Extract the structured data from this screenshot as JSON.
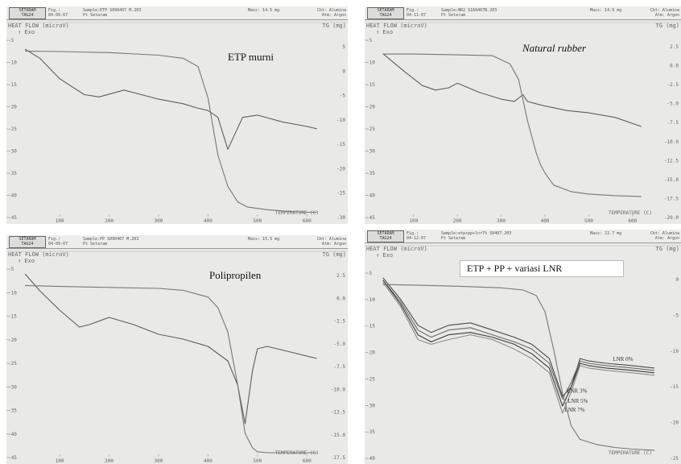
{
  "colors": {
    "background": "#e9e9e7",
    "curve": "#5e5e5e",
    "grid": "#c9c9c9",
    "text": "#666666"
  },
  "panels": [
    {
      "id": "a",
      "header": {
        "logo_line1": "SETARAM",
        "logo_line2": "TAG24",
        "fig": "Fig.:",
        "date": "04-09-07",
        "sample": "Sample:ETP  S090407 M.203",
        "operator": "Pt Setaram",
        "mass": "Mass:    14.5 mg",
        "crucible": "Cbt: Alumina",
        "atm": "Atm: Argon"
      },
      "left_axis_label": "HEAT FLOW (microV)",
      "exo_label": "Exo",
      "right_axis_label": "TG (mg)",
      "left_ticks": [
        "-5",
        "-10",
        "-15",
        "-20",
        "-25",
        "-30",
        "-35",
        "-40",
        "-45"
      ],
      "right_ticks": [
        "5",
        "0",
        "-5",
        "-10",
        "-15",
        "-20",
        "-25",
        "-30"
      ],
      "x_ticks": [
        "100",
        "200",
        "300",
        "400",
        "500",
        "600"
      ],
      "x_axis_label": "TEMPERATURE (C)",
      "title": "ETP murni"
    },
    {
      "id": "b",
      "header": {
        "logo_line1": "SETARAM",
        "logo_line2": "TAG24",
        "fig": "Fig.:",
        "date": "04-11-07",
        "sample": "Sample:NR2 S160407N.203",
        "operator": "Pt Setaram",
        "mass": "Mass:    14.9 mg",
        "crucible": "Cbt: Alumina",
        "atm": "Atm: Argon"
      },
      "left_axis_label": "HEAT FLOW (microV)",
      "exo_label": "Exo",
      "right_axis_label": "TG (mg)",
      "left_ticks": [
        "-5",
        "-10",
        "-15",
        "-20",
        "-25",
        "-30",
        "-35",
        "-40",
        "-45"
      ],
      "right_ticks": [
        "2.5",
        "0.0",
        "-2.5",
        "-5.0",
        "-7.5",
        "-10.0",
        "-12.5",
        "-15.0",
        "-17.5",
        "-20.0"
      ],
      "x_ticks": [
        "100",
        "200",
        "300",
        "400",
        "500",
        "600"
      ],
      "x_axis_label": "TEMPERATURE (C)",
      "title": "Natural rubber"
    },
    {
      "id": "c",
      "header": {
        "logo_line1": "SETARAM",
        "logo_line2": "TAG24",
        "fig": "Fig.:",
        "date": "04-09-07",
        "sample": "Sample:PP  S090407 M.203",
        "operator": "Pt Setaram",
        "mass": "Mass:    15.5 mg",
        "crucible": "Cbt: Alumina",
        "atm": "Atm: Argon"
      },
      "left_axis_label": "HEAT FLOW (microV)",
      "exo_label": "Exo",
      "right_axis_label": "TG (mg)",
      "left_ticks": [
        "-5",
        "-10",
        "-15",
        "-20",
        "-25",
        "-30",
        "-35",
        "-40",
        "-45"
      ],
      "right_ticks": [
        "2.5",
        "0.0",
        "-2.5",
        "-5.0",
        "-7.5",
        "-10.0",
        "-12.5",
        "-15.0",
        "-17.5"
      ],
      "x_ticks": [
        "100",
        "200",
        "300",
        "400",
        "500",
        "600"
      ],
      "x_axis_label": "TEMPERATURE (C)",
      "title": "Polipropilen"
    },
    {
      "id": "d",
      "header": {
        "logo_line1": "SETARAM",
        "logo_line2": "TAG24",
        "fig": "Fig.:",
        "date": "04-12-07",
        "sample": "Sample:etp+pp+lnr7% S0407.203",
        "operator": "Pt Setaram",
        "mass": "Mass:    22.7 mg",
        "crucible": "Cbt: Alumina",
        "atm": "Atm: Argon"
      },
      "left_axis_label": "HEAT FLOW (microV)",
      "exo_label": "Exo",
      "right_axis_label": "TG (mg)",
      "left_ticks": [
        "-5",
        "-10",
        "-15",
        "-20",
        "-25",
        "-30",
        "-35",
        "-40"
      ],
      "right_ticks": [
        "0",
        "-5",
        "-10",
        "-15",
        "-20",
        "-25"
      ],
      "x_ticks": [],
      "x_axis_label": "TEMPERATURE (C)",
      "title": "ETP + PP + variasi LNR",
      "series_labels": [
        "LNR 0%",
        "LNR 3%",
        "LNR 5%",
        "LNR 7%"
      ]
    }
  ],
  "chart_data": [
    {
      "type": "line",
      "title": "ETP murni",
      "xlabel": "TEMPERATURE (C)",
      "ylabel": "HEAT FLOW (microV)",
      "y2label": "TG (mg)",
      "xlim": [
        25,
        650
      ],
      "ylim": [
        -45,
        -5
      ],
      "y2lim": [
        -30,
        5
      ],
      "grid": false,
      "series": [
        {
          "axis": "left",
          "x": [
            30,
            60,
            100,
            150,
            180,
            230,
            300,
            350,
            380,
            400,
            420,
            440,
            470,
            500,
            550,
            600,
            620
          ],
          "y": [
            -8,
            -10,
            -14.5,
            -18,
            -18.5,
            -17,
            -19,
            -20,
            -21,
            -21.5,
            -23,
            -30,
            -23,
            -22.5,
            -24,
            -25,
            -25.5
          ]
        },
        {
          "axis": "right",
          "x": [
            30,
            100,
            200,
            300,
            350,
            380,
            400,
            420,
            440,
            460,
            480,
            520,
            560,
            600,
            620
          ],
          "y": [
            2,
            1.9,
            1.7,
            1.2,
            0.6,
            -1,
            -7,
            -18,
            -24,
            -27,
            -28,
            -28.5,
            -28.8,
            -29,
            -29
          ]
        }
      ]
    },
    {
      "type": "line",
      "title": "Natural rubber",
      "xlabel": "TEMPERATURE (C)",
      "ylabel": "HEAT FLOW (microV)",
      "y2label": "TG (mg)",
      "xlim": [
        25,
        650
      ],
      "ylim": [
        -45,
        -5
      ],
      "y2lim": [
        -20,
        2.5
      ],
      "grid": false,
      "series": [
        {
          "axis": "left",
          "x": [
            30,
            80,
            120,
            150,
            180,
            200,
            250,
            300,
            330,
            350,
            360,
            380,
            400,
            450,
            500,
            560,
            620
          ],
          "y": [
            -9,
            -13,
            -16,
            -17,
            -16.5,
            -15.5,
            -17.5,
            -19,
            -19.5,
            -18,
            -19.5,
            -20,
            -20.5,
            -21.5,
            -22,
            -23,
            -25
          ]
        },
        {
          "axis": "right",
          "x": [
            30,
            100,
            200,
            280,
            320,
            340,
            360,
            380,
            390,
            400,
            420,
            460,
            500,
            560,
            620
          ],
          "y": [
            0.2,
            0.2,
            0.1,
            0,
            -1,
            -3,
            -8,
            -12,
            -13.5,
            -14.5,
            -16,
            -16.8,
            -17.1,
            -17.3,
            -17.4
          ]
        }
      ]
    },
    {
      "type": "line",
      "title": "Polipropilen",
      "xlabel": "TEMPERATURE (C)",
      "ylabel": "HEAT FLOW (microV)",
      "y2label": "TG (mg)",
      "xlim": [
        25,
        650
      ],
      "ylim": [
        -45,
        -5
      ],
      "y2lim": [
        -17.5,
        2.5
      ],
      "grid": false,
      "series": [
        {
          "axis": "left",
          "x": [
            30,
            60,
            100,
            140,
            160,
            200,
            250,
            300,
            350,
            400,
            440,
            460,
            475,
            490,
            500,
            520,
            560,
            620
          ],
          "y": [
            -7,
            -10.5,
            -14.5,
            -18,
            -17.5,
            -16,
            -17.5,
            -19.5,
            -20.5,
            -22,
            -25,
            -30,
            -38,
            -27,
            -22.5,
            -22,
            -23,
            -24.5
          ]
        },
        {
          "axis": "right",
          "x": [
            30,
            100,
            200,
            300,
            350,
            400,
            420,
            440,
            460,
            475,
            490,
            500,
            520,
            560,
            620
          ],
          "y": [
            0.3,
            0.2,
            0.1,
            0,
            -0.2,
            -0.9,
            -2,
            -4.5,
            -10,
            -15,
            -16.5,
            -16.9,
            -17.0,
            -17.0,
            -17.0
          ]
        }
      ]
    },
    {
      "type": "line",
      "title": "ETP + PP + variasi LNR",
      "xlabel": "TEMPERATURE (C)",
      "ylabel": "HEAT FLOW (microV)",
      "y2label": "TG (mg)",
      "xlim": [
        25,
        650
      ],
      "ylim": [
        -45,
        -5
      ],
      "y2lim": [
        -30,
        5
      ],
      "grid": false,
      "series": [
        {
          "name": "LNR 0%",
          "axis": "left",
          "x": [
            30,
            70,
            110,
            140,
            180,
            230,
            280,
            330,
            370,
            410,
            440,
            460,
            480,
            500,
            540,
            600,
            650
          ],
          "y": [
            -7,
            -11.5,
            -17,
            -18.5,
            -17,
            -16.5,
            -18,
            -19.5,
            -21,
            -24,
            -32,
            -30,
            -24,
            -24.5,
            -25,
            -25.5,
            -26
          ]
        },
        {
          "name": "LNR 3%",
          "axis": "left",
          "x": [
            30,
            70,
            110,
            140,
            180,
            230,
            280,
            330,
            370,
            410,
            440,
            460,
            480,
            500,
            540,
            600,
            650
          ],
          "y": [
            -7.5,
            -12,
            -18,
            -19.5,
            -18,
            -17.5,
            -19,
            -20.5,
            -22,
            -25,
            -32.5,
            -29,
            -24.5,
            -25,
            -25.5,
            -26,
            -26.5
          ]
        },
        {
          "name": "LNR 5%",
          "axis": "left",
          "x": [
            30,
            70,
            110,
            140,
            180,
            230,
            280,
            330,
            370,
            410,
            440,
            460,
            480,
            500,
            540,
            600,
            650
          ],
          "y": [
            -7.5,
            -12.5,
            -19,
            -20.5,
            -19,
            -18.5,
            -19.5,
            -21,
            -23,
            -26,
            -34,
            -30,
            -25,
            -25.5,
            -26,
            -26.5,
            -27
          ]
        },
        {
          "name": "LNR 7%",
          "axis": "left",
          "x": [
            30,
            70,
            110,
            140,
            180,
            230,
            280,
            330,
            370,
            410,
            440,
            460,
            480,
            500,
            540,
            600,
            650
          ],
          "y": [
            -8,
            -13,
            -20,
            -21,
            -20,
            -19,
            -20,
            -22,
            -24,
            -27,
            -35.5,
            -31,
            -25.5,
            -26,
            -26.5,
            -27,
            -27.5
          ]
        },
        {
          "axis": "right",
          "x": [
            30,
            100,
            200,
            300,
            350,
            380,
            400,
            420,
            440,
            460,
            480,
            520,
            560,
            600,
            650
          ],
          "y": [
            2,
            1.9,
            1.7,
            1.4,
            1.0,
            0,
            -3,
            -10,
            -18,
            -24,
            -26.5,
            -27.5,
            -28,
            -28.3,
            -28.5
          ]
        }
      ]
    }
  ]
}
